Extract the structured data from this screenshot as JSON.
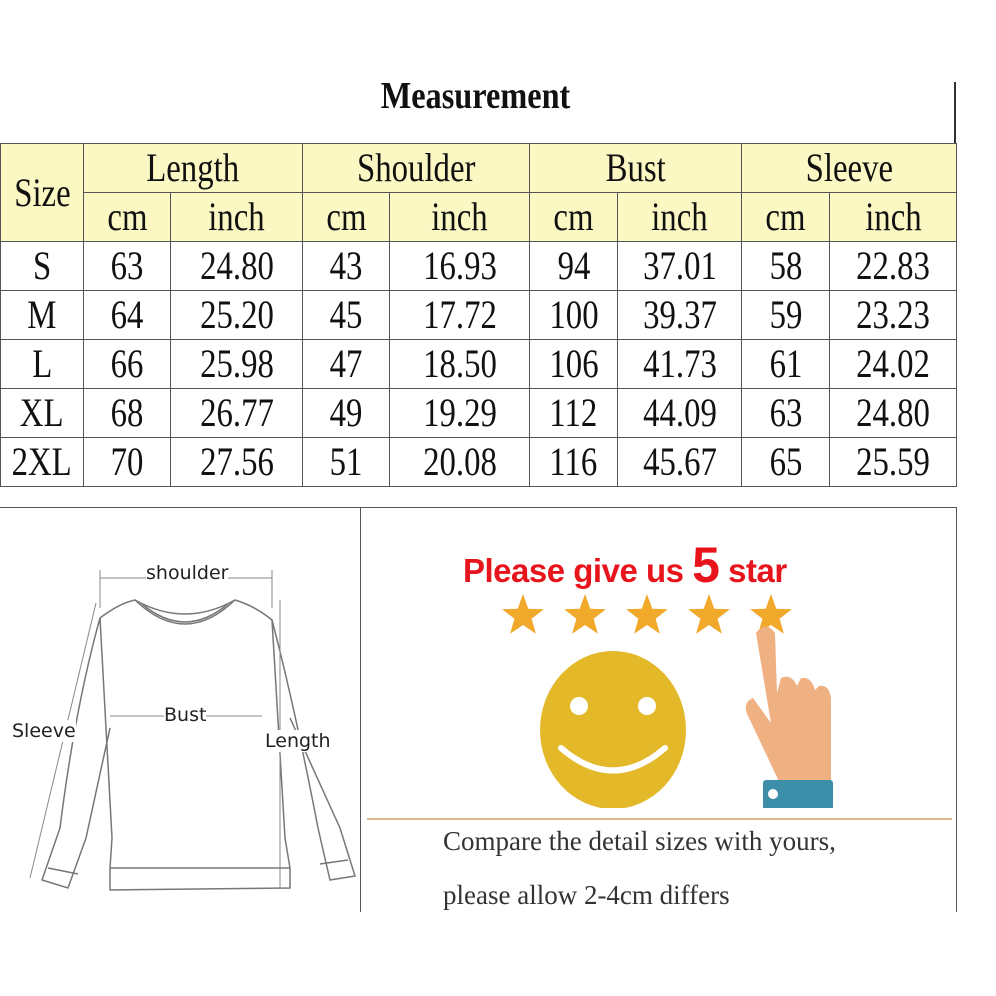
{
  "title": "Measurement",
  "table": {
    "size_header": "Size",
    "groups": [
      "Length",
      "Shoulder",
      "Bust",
      "Sleeve"
    ],
    "units": [
      "cm",
      "inch",
      "cm",
      "inch",
      "cm",
      "inch",
      "cm",
      "inch"
    ],
    "rows": [
      {
        "size": "S",
        "values": [
          "63",
          "24.80",
          "43",
          "16.93",
          "94",
          "37.01",
          "58",
          "22.83"
        ]
      },
      {
        "size": "M",
        "values": [
          "64",
          "25.20",
          "45",
          "17.72",
          "100",
          "39.37",
          "59",
          "23.23"
        ]
      },
      {
        "size": "L",
        "values": [
          "66",
          "25.98",
          "47",
          "18.50",
          "106",
          "41.73",
          "61",
          "24.02"
        ]
      },
      {
        "size": "XL",
        "values": [
          "68",
          "26.77",
          "49",
          "19.29",
          "112",
          "44.09",
          "63",
          "24.80"
        ]
      },
      {
        "size": "2XL",
        "values": [
          "70",
          "27.56",
          "51",
          "20.08",
          "116",
          "45.67",
          "65",
          "25.59"
        ]
      }
    ],
    "header_color": "#fbf8c4"
  },
  "diagram": {
    "labels": {
      "shoulder": "shoulder",
      "bust": "Bust",
      "sleeve": "Sleeve",
      "length": "Length"
    }
  },
  "rating": {
    "text_before": "Please give us ",
    "number": "5",
    "text_after": " star",
    "stars": 5,
    "color": "#e8141c",
    "star_color": "#f0a92a"
  },
  "note": {
    "line1": "Compare the detail sizes with yours,",
    "line2": "please allow 2-4cm differs"
  }
}
